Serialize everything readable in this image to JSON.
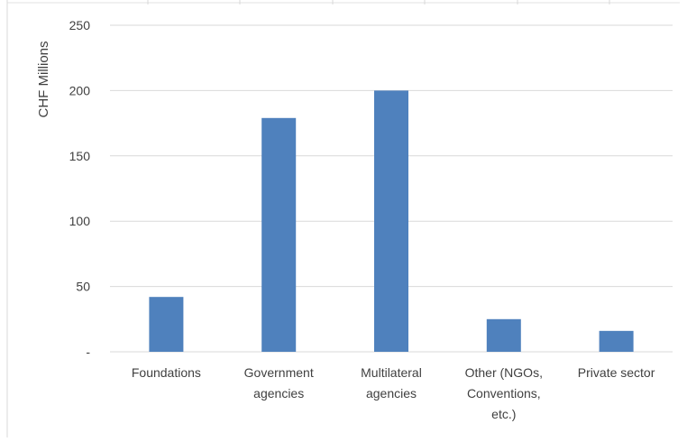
{
  "chart_data": {
    "type": "bar",
    "title": "",
    "xlabel": "",
    "ylabel": "CHF Millions",
    "ylim": [
      0,
      250
    ],
    "yticks": [
      0,
      50,
      100,
      150,
      200,
      250
    ],
    "ytick_labels": [
      "-",
      "50",
      "100",
      "150",
      "200",
      "250"
    ],
    "grid": true,
    "bar_color": "#4F81BD",
    "categories": [
      [
        "Foundations"
      ],
      [
        "Government",
        "agencies"
      ],
      [
        "Multilateral",
        "agencies"
      ],
      [
        "Other (NGOs,",
        "Conventions,",
        "etc.)"
      ],
      [
        "Private sector"
      ]
    ],
    "values": [
      42,
      179,
      200,
      25,
      16
    ]
  }
}
